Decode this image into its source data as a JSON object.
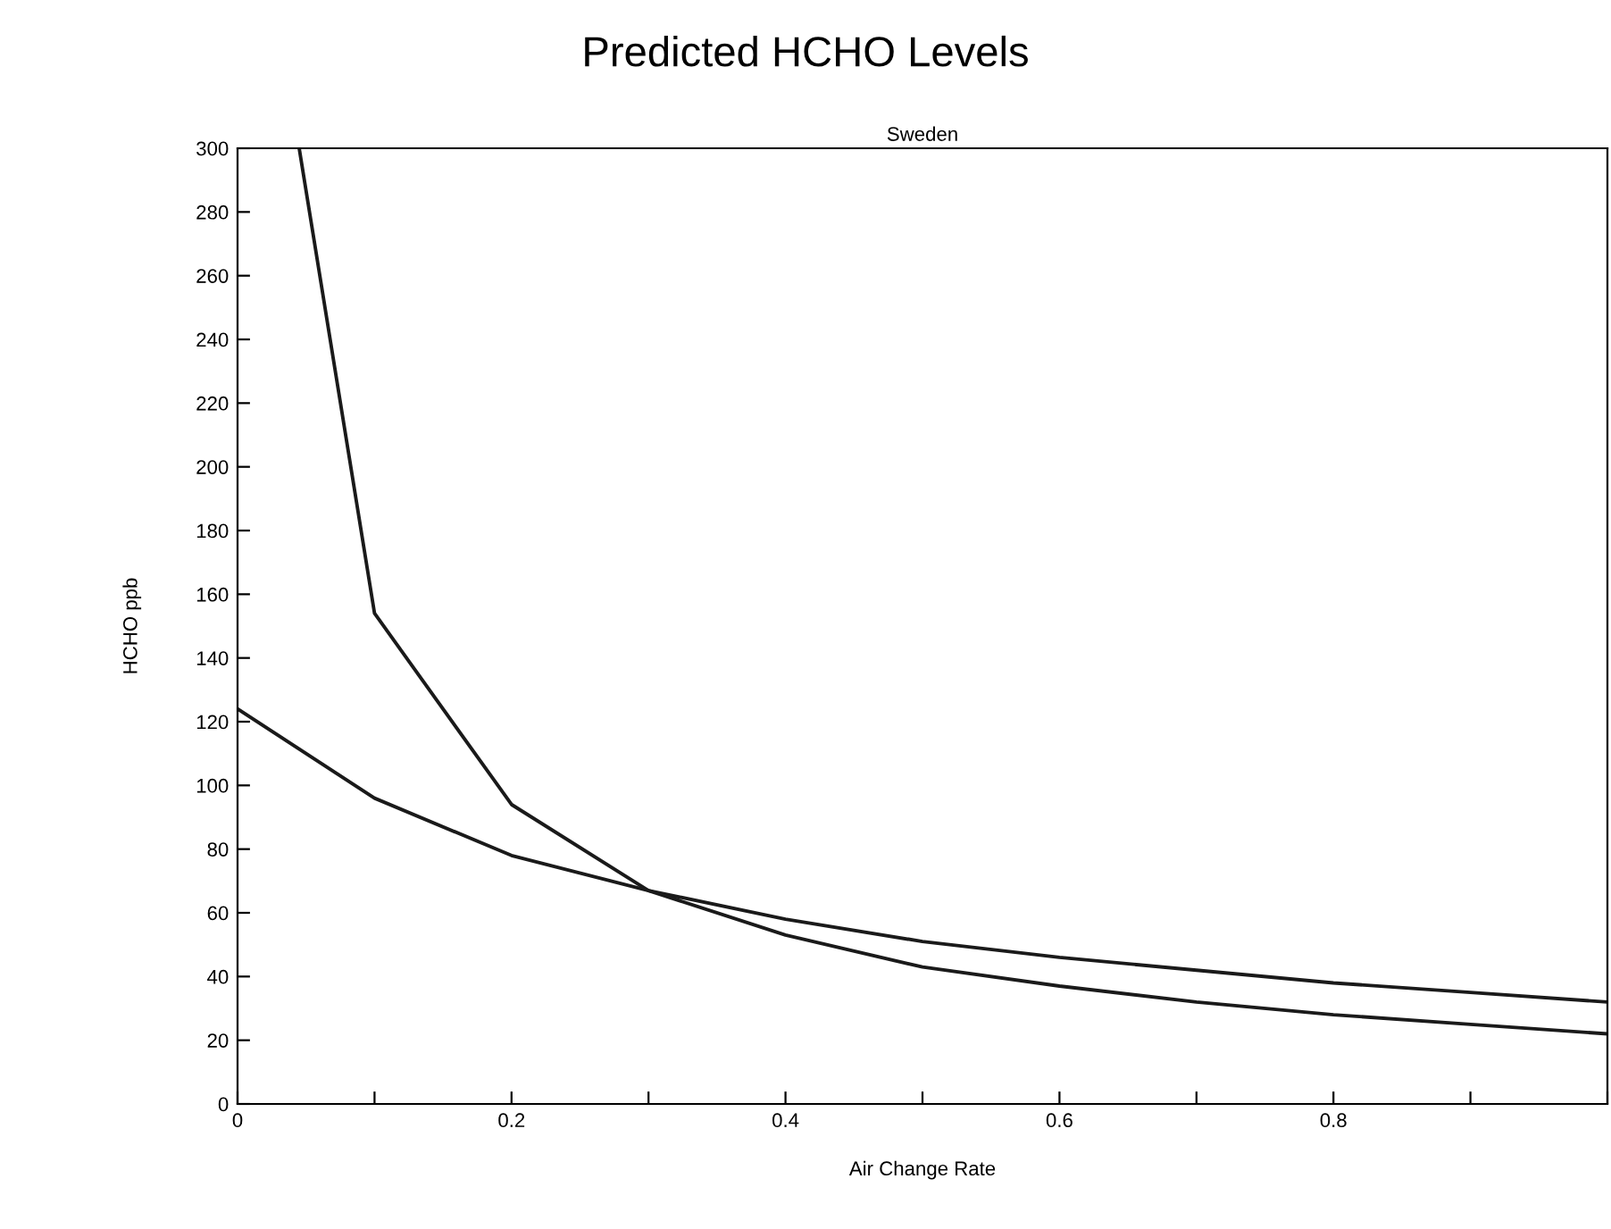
{
  "chart_data": {
    "type": "line",
    "title": "Predicted HCHO Levels",
    "subtitle": "Sweden",
    "xlabel": "Air Change Rate",
    "ylabel": "HCHO ppb",
    "x": [
      0,
      0.1,
      0.2,
      0.3,
      0.4,
      0.5,
      0.6,
      0.7,
      0.8,
      0.9,
      1.0
    ],
    "series": [
      {
        "color": "#1a1a1a",
        "x": [
          0.045,
          0.1,
          0.2,
          0.3,
          0.4,
          0.5,
          0.6,
          0.7,
          0.8,
          0.9,
          1.0
        ],
        "values": [
          300,
          154,
          94,
          67,
          53,
          43,
          37,
          32,
          28,
          25,
          22
        ]
      },
      {
        "color": "#1a1a1a",
        "values": [
          124,
          96,
          78,
          67,
          58,
          51,
          46,
          42,
          38,
          35,
          32
        ]
      }
    ],
    "xlim": [
      0,
      1
    ],
    "ylim": [
      0,
      300
    ],
    "xticks": [
      0,
      {
        "value": 0.1,
        "label": null
      },
      0.2,
      {
        "value": 0.3,
        "label": null
      },
      0.4,
      {
        "value": 0.5,
        "label": null
      },
      0.6,
      {
        "value": 0.7,
        "label": null
      },
      0.8,
      {
        "value": 0.9,
        "label": null
      },
      {
        "value": 1.0,
        "label": null
      }
    ],
    "yticks": [
      0,
      20,
      40,
      60,
      80,
      100,
      120,
      140,
      160,
      180,
      200,
      220,
      240,
      260,
      280,
      300
    ],
    "grid": false,
    "legend": false,
    "marker": "none",
    "line_style": "solid"
  }
}
